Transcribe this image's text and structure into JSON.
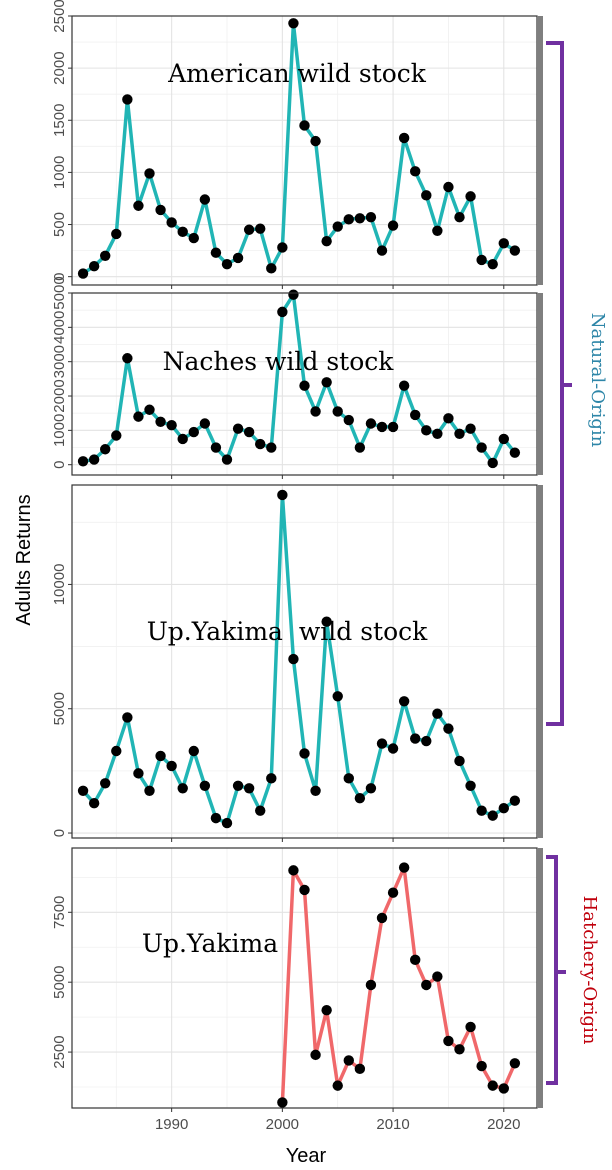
{
  "figure": {
    "xlabel": "Year",
    "ylabel": "Adults Returns",
    "groups": [
      {
        "label": "Natural-Origin",
        "color": "#2e86a8",
        "bracket_color": "#7030a0"
      },
      {
        "label": "Hatchery-Origin",
        "color": "#c0000c",
        "bracket_color": "#7030a0"
      }
    ]
  },
  "chart_data": [
    {
      "type": "line",
      "title": "American wild stock",
      "color": "#21b5b5",
      "xlim": [
        1981,
        2023
      ],
      "ylim": [
        -80,
        2500
      ],
      "yticks": [
        0,
        500,
        1000,
        1500,
        2000,
        2500
      ],
      "xticks": [
        1990,
        2000,
        2010,
        2020
      ],
      "show_xtick_labels": false,
      "x": [
        1982,
        1983,
        1984,
        1985,
        1986,
        1987,
        1988,
        1989,
        1990,
        1991,
        1992,
        1993,
        1994,
        1995,
        1996,
        1997,
        1998,
        1999,
        2000,
        2001,
        2002,
        2003,
        2004,
        2005,
        2006,
        2007,
        2008,
        2009,
        2010,
        2011,
        2012,
        2013,
        2014,
        2015,
        2016,
        2017,
        2018,
        2019,
        2020,
        2021
      ],
      "y": [
        30,
        100,
        200,
        410,
        1700,
        680,
        990,
        640,
        520,
        430,
        370,
        740,
        230,
        120,
        180,
        450,
        460,
        80,
        280,
        2430,
        1450,
        1300,
        340,
        480,
        550,
        560,
        570,
        250,
        490,
        1330,
        1010,
        780,
        440,
        860,
        570,
        770,
        160,
        120,
        320,
        250
      ]
    },
    {
      "type": "line",
      "title": "Naches wild stock",
      "color": "#21b5b5",
      "xlim": [
        1981,
        2023
      ],
      "ylim": [
        -300,
        5000
      ],
      "yticks": [
        0,
        1000,
        2000,
        3000,
        4000,
        5000
      ],
      "xticks": [
        1990,
        2000,
        2010,
        2020
      ],
      "show_xtick_labels": false,
      "x": [
        1982,
        1983,
        1984,
        1985,
        1986,
        1987,
        1988,
        1989,
        1990,
        1991,
        1992,
        1993,
        1994,
        1995,
        1996,
        1997,
        1998,
        1999,
        2000,
        2001,
        2002,
        2003,
        2004,
        2005,
        2006,
        2007,
        2008,
        2009,
        2010,
        2011,
        2012,
        2013,
        2014,
        2015,
        2016,
        2017,
        2018,
        2019,
        2020,
        2021
      ],
      "y": [
        100,
        150,
        450,
        850,
        3100,
        1400,
        1600,
        1250,
        1150,
        750,
        950,
        1200,
        500,
        150,
        1050,
        950,
        600,
        500,
        4450,
        4950,
        2300,
        1550,
        2400,
        1550,
        1300,
        500,
        1200,
        1100,
        1100,
        2300,
        1450,
        1000,
        900,
        1350,
        900,
        1050,
        500,
        50,
        750,
        350
      ]
    },
    {
      "type": "line",
      "title": "Up.Yakima  wild stock",
      "color": "#21b5b5",
      "xlim": [
        1981,
        2023
      ],
      "ylim": [
        -200,
        14000
      ],
      "yticks": [
        0,
        5000,
        10000
      ],
      "xticks": [
        1990,
        2000,
        2010,
        2020
      ],
      "show_xtick_labels": false,
      "x": [
        1982,
        1983,
        1984,
        1985,
        1986,
        1987,
        1988,
        1989,
        1990,
        1991,
        1992,
        1993,
        1994,
        1995,
        1996,
        1997,
        1998,
        1999,
        2000,
        2001,
        2002,
        2003,
        2004,
        2005,
        2006,
        2007,
        2008,
        2009,
        2010,
        2011,
        2012,
        2013,
        2014,
        2015,
        2016,
        2017,
        2018,
        2019,
        2020,
        2021
      ],
      "y": [
        1700,
        1200,
        2000,
        3300,
        4650,
        2400,
        1700,
        3100,
        2700,
        1800,
        3300,
        1900,
        600,
        400,
        1900,
        1800,
        900,
        2200,
        13600,
        7000,
        3200,
        1700,
        8500,
        5500,
        2200,
        1400,
        1800,
        3600,
        3400,
        5300,
        3800,
        3700,
        4800,
        4200,
        2900,
        1900,
        900,
        700,
        1000,
        1300
      ]
    },
    {
      "type": "line",
      "title": "Up.Yakima",
      "color": "#f0686a",
      "xlim": [
        1981,
        2023
      ],
      "ylim": [
        500,
        9800
      ],
      "yticks": [
        2500,
        5000,
        7500
      ],
      "xticks": [
        1990,
        2000,
        2010,
        2020
      ],
      "show_xtick_labels": true,
      "x": [
        2000,
        2001,
        2002,
        2003,
        2004,
        2005,
        2006,
        2007,
        2008,
        2009,
        2010,
        2011,
        2012,
        2013,
        2014,
        2015,
        2016,
        2017,
        2018,
        2019,
        2020,
        2021
      ],
      "y": [
        700,
        9000,
        8300,
        2400,
        4000,
        1300,
        2200,
        1900,
        4900,
        7300,
        8200,
        9100,
        5800,
        4900,
        5200,
        2900,
        2600,
        3400,
        2000,
        1300,
        1200,
        2100
      ]
    }
  ]
}
